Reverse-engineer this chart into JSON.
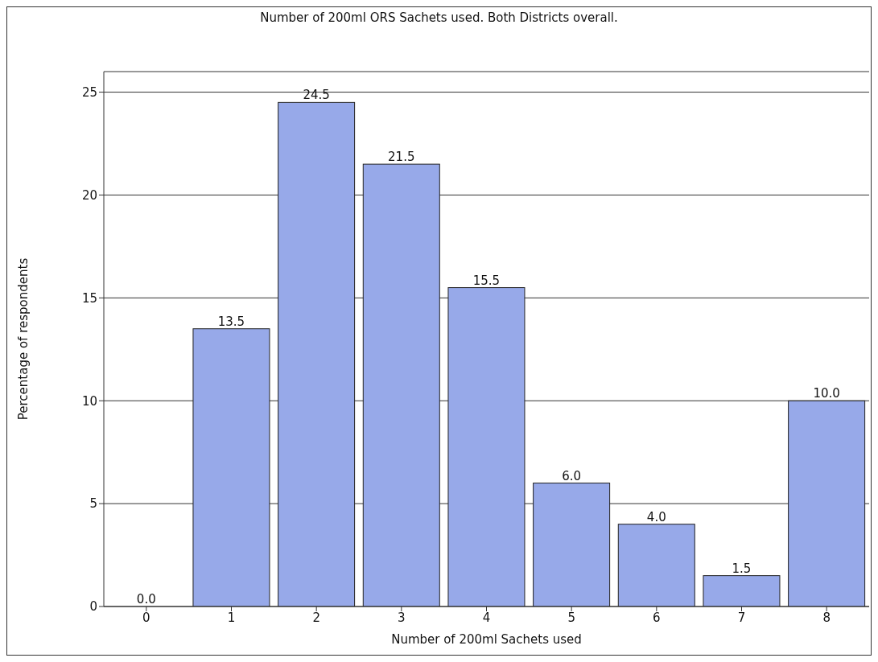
{
  "chart_data": {
    "type": "bar",
    "title": "Number of 200ml ORS Sachets used. Both Districts overall.",
    "xlabel": "Number of 200ml Sachets used",
    "ylabel": "Percentage of respondents",
    "categories": [
      "0",
      "1",
      "2",
      "3",
      "4",
      "5",
      "6",
      "7",
      "8"
    ],
    "values": [
      0.0,
      13.5,
      24.5,
      21.5,
      15.5,
      6.0,
      4.0,
      1.5,
      10.0
    ],
    "value_labels": [
      "0.0",
      "13.5",
      "24.5",
      "21.5",
      "15.5",
      "6.0",
      "4.0",
      "1.5",
      "10.0"
    ],
    "color": "#97a9e9",
    "ylim": [
      0,
      26
    ],
    "yticks": [
      0,
      5,
      10,
      15,
      20,
      25
    ],
    "grid": "y"
  }
}
